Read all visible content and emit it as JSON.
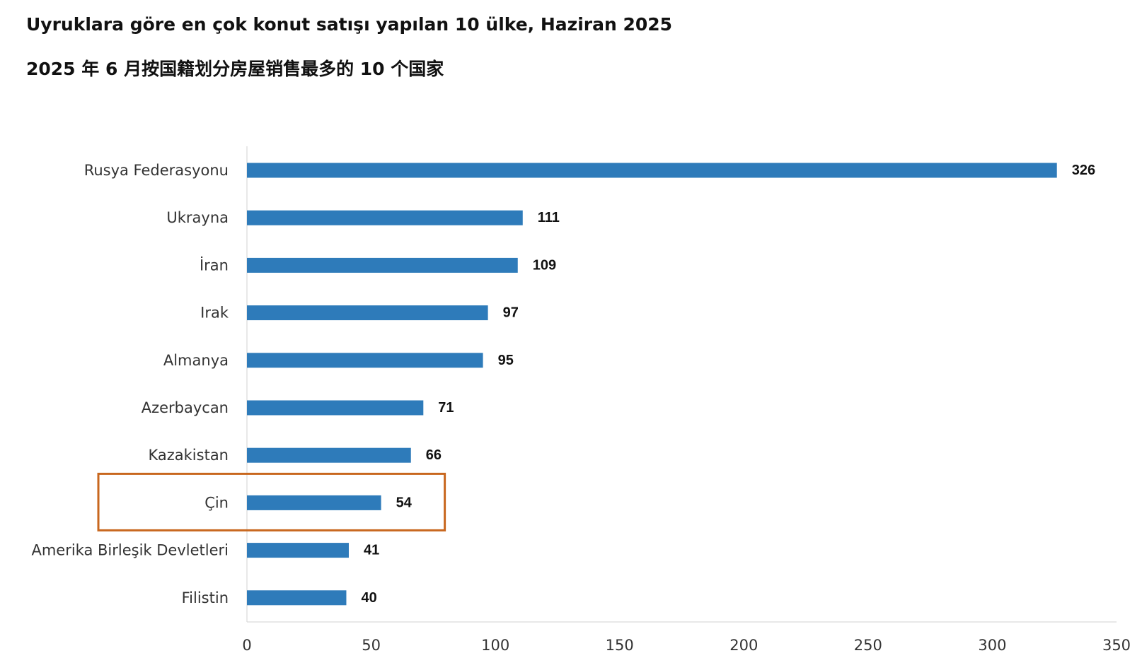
{
  "titles": {
    "line1": "Uyruklara göre en çok konut satışı yapılan 10 ülke, Haziran 2025",
    "line2": "2025 年 6 月按国籍划分房屋销售最多的 10 个国家"
  },
  "chart_data": {
    "type": "bar",
    "orientation": "horizontal",
    "title": "Uyruklara göre en çok konut satışı yapılan 10 ülke, Haziran 2025",
    "subtitle": "2025 年 6 月按国籍划分房屋销售最多的 10 个国家",
    "categories": [
      "Rusya Federasyonu",
      "Ukrayna",
      "İran",
      "Irak",
      "Almanya",
      "Azerbaycan",
      "Kazakistan",
      "Çin",
      "Amerika Birleşik Devletleri",
      "Filistin"
    ],
    "values": [
      326,
      111,
      109,
      97,
      95,
      71,
      66,
      54,
      41,
      40
    ],
    "xlim": [
      0,
      350
    ],
    "xticks": [
      0,
      50,
      100,
      150,
      200,
      250,
      300,
      350
    ],
    "grid": false,
    "legend": "none",
    "highlight_category": "Çin",
    "bar_color": "#2e7bba",
    "highlight_color": "#c8671e"
  }
}
